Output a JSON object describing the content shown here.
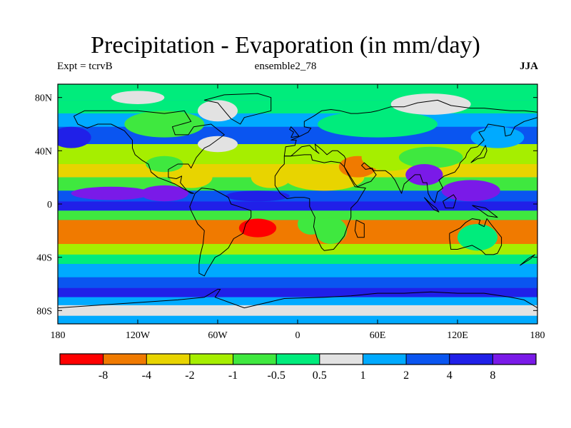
{
  "title": "Precipitation - Evaporation (in mm/day)",
  "subtitle_left": "Expt = tcrvB",
  "subtitle_center": "ensemble2_78",
  "subtitle_right": "JJA",
  "map": {
    "projection": "cylindrical-equidistant",
    "lon_range": [
      -180,
      180
    ],
    "lat_range": [
      -90,
      90
    ],
    "x_ticks": [
      {
        "lon": -180,
        "label": "180"
      },
      {
        "lon": -120,
        "label": "120W"
      },
      {
        "lon": -60,
        "label": "60W"
      },
      {
        "lon": 0,
        "label": "0"
      },
      {
        "lon": 60,
        "label": "60E"
      },
      {
        "lon": 120,
        "label": "120E"
      },
      {
        "lon": 180,
        "label": "180"
      }
    ],
    "y_ticks": [
      {
        "lat": 80,
        "label": "80N"
      },
      {
        "lat": 40,
        "label": "40N"
      },
      {
        "lat": 0,
        "label": "0"
      },
      {
        "lat": -40,
        "label": "40S"
      },
      {
        "lat": -80,
        "label": "80S"
      }
    ]
  },
  "colorbar": {
    "colors": [
      "#ff0000",
      "#f07a00",
      "#e8d400",
      "#a6ee00",
      "#3fe83f",
      "#00ec7c",
      "#e2e2e2",
      "#00aaff",
      "#0a55f0",
      "#2020e8",
      "#7a1ae8"
    ],
    "labels": [
      "-8",
      "-4",
      "-2",
      "-1",
      "-0.5",
      "0.5",
      "1",
      "2",
      "4",
      "8"
    ]
  }
}
